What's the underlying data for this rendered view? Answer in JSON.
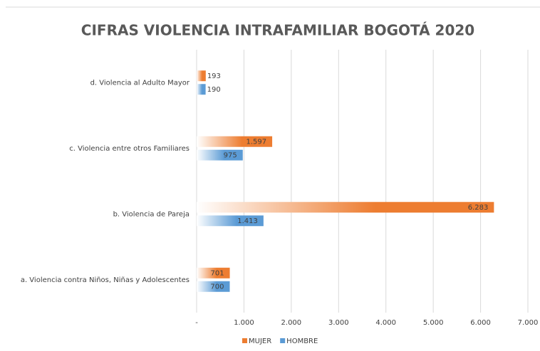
{
  "chart_data": {
    "type": "bar",
    "orientation": "horizontal",
    "title": "CIFRAS VIOLENCIA INTRAFAMILIAR BOGOTÁ 2020",
    "categories": [
      "a. Violencia contra Niños, Niñas y Adolescentes",
      "b. Violencia de Pareja",
      "c. Violencia entre otros Familiares",
      "d. Violencia al Adulto Mayor"
    ],
    "series": [
      {
        "name": "MUJER",
        "color": "#ed7d31",
        "values": [
          701,
          6283,
          1597,
          193
        ],
        "value_labels": [
          "701",
          "6.283",
          "1.597",
          "193"
        ]
      },
      {
        "name": "HOMBRE",
        "color": "#5b9bd5",
        "values": [
          700,
          1413,
          975,
          190
        ],
        "value_labels": [
          "700",
          "1.413",
          "975",
          "190"
        ]
      }
    ],
    "xlim": [
      0,
      7000
    ],
    "xticks": [
      {
        "value": 0,
        "label": "-"
      },
      {
        "value": 1000,
        "label": "1.000"
      },
      {
        "value": 2000,
        "label": "2.000"
      },
      {
        "value": 3000,
        "label": "3.000"
      },
      {
        "value": 4000,
        "label": "4.000"
      },
      {
        "value": 5000,
        "label": "5.000"
      },
      {
        "value": 6000,
        "label": "6.000"
      },
      {
        "value": 7000,
        "label": "7.000"
      }
    ],
    "grid": true,
    "legend": "bottom"
  }
}
